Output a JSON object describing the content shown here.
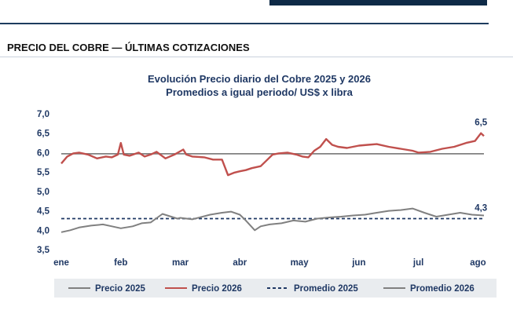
{
  "section": {
    "title": "PRECIO DEL COBRE — ÚLTIMAS COTIZACIONES"
  },
  "chart_data": {
    "type": "line",
    "title": "Evolución Precio diario del Cobre 2025 y 2026",
    "subtitle": "Promedios a igual periodo/ US$ x libra",
    "xlabel": "",
    "ylabel": "",
    "ylim": [
      3.5,
      7.0
    ],
    "y_ticks": [
      "7,0",
      "6,5",
      "6,0",
      "5,5",
      "5,0",
      "4,5",
      "4,0",
      "3,5"
    ],
    "y_tick_values": [
      7.0,
      6.5,
      6.0,
      5.5,
      5.0,
      4.5,
      4.0,
      3.5
    ],
    "x_ticks": [
      "ene",
      "feb",
      "mar",
      "abr",
      "may",
      "jun",
      "jul",
      "ago"
    ],
    "x_tick_positions": [
      0,
      1,
      2,
      3,
      4,
      5,
      6,
      7
    ],
    "grid": false,
    "legend_position": "bottom",
    "series": [
      {
        "name": "Precio 2025",
        "color": "#808080",
        "style": "solid",
        "x": [
          0,
          0.15,
          0.3,
          0.5,
          0.7,
          0.85,
          1.0,
          1.2,
          1.35,
          1.5,
          1.7,
          1.95,
          2.0,
          2.2,
          2.5,
          2.7,
          2.85,
          3.0,
          3.1,
          3.25,
          3.35,
          3.5,
          3.7,
          3.9,
          4.1,
          4.3,
          4.5,
          4.7,
          4.9,
          5.1,
          5.3,
          5.5,
          5.7,
          5.9,
          6.1,
          6.3,
          6.5,
          6.7,
          6.9,
          7.1
        ],
        "y": [
          3.95,
          4.0,
          4.07,
          4.12,
          4.15,
          4.1,
          4.05,
          4.1,
          4.18,
          4.2,
          4.42,
          4.3,
          4.32,
          4.28,
          4.4,
          4.45,
          4.48,
          4.4,
          4.25,
          4.0,
          4.1,
          4.15,
          4.18,
          4.25,
          4.22,
          4.3,
          4.33,
          4.35,
          4.38,
          4.4,
          4.45,
          4.5,
          4.52,
          4.56,
          4.45,
          4.35,
          4.4,
          4.45,
          4.4,
          4.38
        ]
      },
      {
        "name": "Precio 2026",
        "color": "#c0504d",
        "style": "solid",
        "x": [
          0,
          0.1,
          0.2,
          0.3,
          0.45,
          0.6,
          0.75,
          0.85,
          0.95,
          1.0,
          1.05,
          1.15,
          1.3,
          1.4,
          1.5,
          1.6,
          1.75,
          1.9,
          2.05,
          2.1,
          2.2,
          2.4,
          2.55,
          2.7,
          2.8,
          2.9,
          3.0,
          3.1,
          3.2,
          3.35,
          3.45,
          3.55,
          3.65,
          3.8,
          3.95,
          4.05,
          4.15,
          4.25,
          4.35,
          4.45,
          4.55,
          4.65,
          4.8,
          5.0,
          5.15,
          5.3,
          5.5,
          5.7,
          5.9,
          6.0,
          6.2,
          6.4,
          6.6,
          6.8,
          6.95,
          7.05,
          7.1
        ],
        "y": [
          5.72,
          5.9,
          5.98,
          6.0,
          5.95,
          5.85,
          5.9,
          5.88,
          5.95,
          6.25,
          5.95,
          5.92,
          6.0,
          5.9,
          5.95,
          6.02,
          5.85,
          5.95,
          6.08,
          5.95,
          5.9,
          5.88,
          5.82,
          5.82,
          5.42,
          5.48,
          5.52,
          5.55,
          5.6,
          5.65,
          5.8,
          5.95,
          5.98,
          6.0,
          5.95,
          5.9,
          5.88,
          6.05,
          6.15,
          6.35,
          6.2,
          6.15,
          6.12,
          6.18,
          6.2,
          6.22,
          6.15,
          6.1,
          6.05,
          6.0,
          6.02,
          6.1,
          6.15,
          6.25,
          6.3,
          6.5,
          6.43
        ]
      },
      {
        "name": "Promedio 2025",
        "color": "#1f3864",
        "style": "dashed",
        "x": [
          0,
          7.1
        ],
        "y": [
          4.3,
          4.3
        ]
      },
      {
        "name": "Promedio 2026",
        "color": "#808080",
        "style": "solid",
        "x": [
          0,
          7.1
        ],
        "y": [
          5.97,
          5.97
        ]
      }
    ],
    "annotations": [
      {
        "text": "6,5",
        "x": 7.05,
        "y": 6.5,
        "color": "#1f3864"
      },
      {
        "text": "4,3",
        "x": 7.05,
        "y": 4.3,
        "color": "#1f3864"
      }
    ]
  }
}
